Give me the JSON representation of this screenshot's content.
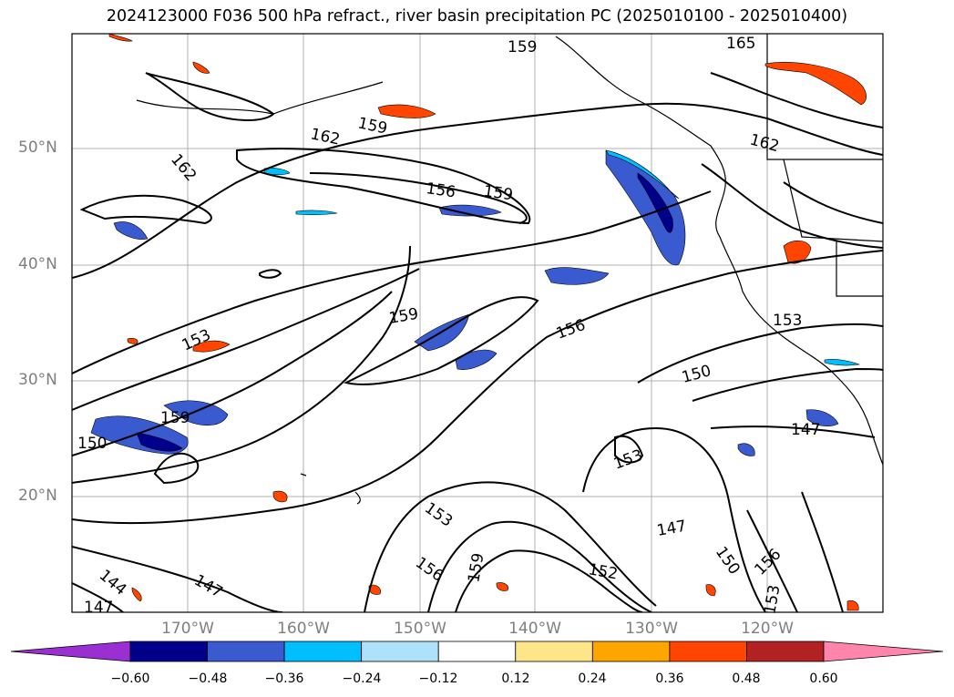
{
  "title": "2024123000 F036 500 hPa refract., river basin precipitation PC (2025010100 - 2025010400)",
  "lat_labels": [
    "50°N",
    "40°N",
    "30°N",
    "20°N"
  ],
  "lon_labels": [
    "170°W",
    "160°W",
    "150°W",
    "140°W",
    "130°W",
    "120°W"
  ],
  "contour_labels": [
    "159",
    "165",
    "162",
    "159",
    "162",
    "156",
    "159",
    "162",
    "153",
    "159",
    "156",
    "153",
    "159",
    "150",
    "150",
    "147",
    "153",
    "153",
    "147",
    "156",
    "159",
    "150",
    "156",
    "144",
    "147",
    "147",
    "152",
    "153"
  ],
  "colorbar": {
    "ticks": [
      "−0.60",
      "−0.48",
      "−0.36",
      "−0.24",
      "−0.12",
      "0.12",
      "0.24",
      "0.36",
      "0.48",
      "0.60"
    ],
    "colors": [
      "#9b30d2",
      "#00008b",
      "#3a5bd0",
      "#00bfff",
      "#aee2fb",
      "#ffffff",
      "#fde68a",
      "#ffa500",
      "#ff4500",
      "#b22222",
      "#ff85ad"
    ]
  }
}
